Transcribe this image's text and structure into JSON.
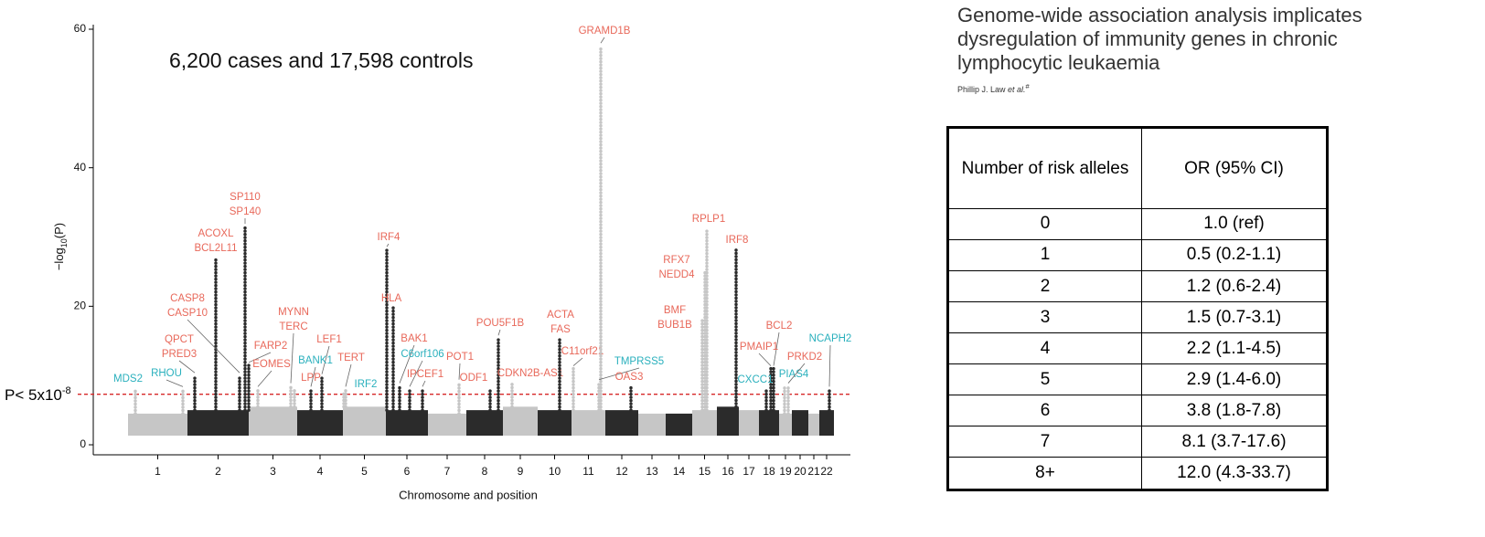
{
  "chart_data": {
    "type": "manhattan",
    "annotation": "6,200 cases and 17,598 controls",
    "xlabel": "Chromosome and position",
    "ylabel": {
      "prefix": "−log",
      "sub": "10",
      "suffix": "(P)"
    },
    "ylim": [
      -1.5,
      60
    ],
    "yticks": [
      0,
      20,
      40,
      60
    ],
    "categories": [
      "1",
      "2",
      "3",
      "4",
      "5",
      "6",
      "7",
      "8",
      "9",
      "10",
      "11",
      "12",
      "13",
      "14",
      "15",
      "16",
      "17",
      "18",
      "19",
      "20",
      "21",
      "22"
    ],
    "background": [
      4.5,
      5,
      5.5,
      5,
      5.5,
      5,
      4.5,
      5,
      5.5,
      5,
      5,
      5,
      4.5,
      4.5,
      5,
      5.5,
      5,
      5,
      4.5,
      5,
      4.5,
      5
    ],
    "colors": {
      "odd": "#c6c6c6",
      "even": "#2b2b2b"
    },
    "threshold": {
      "value": 7.3,
      "label": "P< 5x10",
      "sup": "-8",
      "color": "#d62728"
    },
    "peaks": [
      {
        "label": [
          "MDS2"
        ],
        "chromosome": "1",
        "value": 8,
        "color": "#2ab0bd"
      },
      {
        "label": [
          "RHOU"
        ],
        "chromosome": "1",
        "value": 8,
        "color": "#2ab0bd"
      },
      {
        "label": [
          "QPCT",
          "PRED3"
        ],
        "chromosome": "2",
        "value": 10,
        "color": "#e8685a"
      },
      {
        "label": [
          "ACOXL",
          "BCL2L11"
        ],
        "chromosome": "2",
        "value": 26.8,
        "color": "#e8685a"
      },
      {
        "label": [
          "CASP8",
          "CASP10"
        ],
        "chromosome": "2",
        "value": 10,
        "color": "#e8685a"
      },
      {
        "label": [
          "SP110",
          "SP140"
        ],
        "chromosome": "2",
        "value": 31.5,
        "color": "#e8685a"
      },
      {
        "label": [
          "FARP2"
        ],
        "chromosome": "2",
        "value": 11.5,
        "color": "#e8685a"
      },
      {
        "label": [
          "EOMES"
        ],
        "chromosome": "3",
        "value": 8,
        "color": "#e8685a"
      },
      {
        "label": [
          "MYNN",
          "TERC"
        ],
        "chromosome": "3",
        "value": 8.5,
        "color": "#e8685a"
      },
      {
        "label": [
          "LPP"
        ],
        "chromosome": "3",
        "value": 8,
        "color": "#e8685a"
      },
      {
        "label": [
          "LEF1"
        ],
        "chromosome": "4",
        "value": 9.8,
        "color": "#e8685a"
      },
      {
        "label": [
          "BANK1"
        ],
        "chromosome": "4",
        "value": 8,
        "color": "#2ab0bd"
      },
      {
        "label": [
          "TERT"
        ],
        "chromosome": "5",
        "value": 8,
        "color": "#e8685a"
      },
      {
        "label": [
          "IRF2"
        ],
        "chromosome": "5",
        "value": 7.5,
        "color": "#2ab0bd"
      },
      {
        "label": [
          "IRF4"
        ],
        "chromosome": "6",
        "value": 28.2,
        "color": "#e8685a"
      },
      {
        "label": [
          "HLA"
        ],
        "chromosome": "6",
        "value": 19.8,
        "color": "#e8685a"
      },
      {
        "label": [
          "BAK1"
        ],
        "chromosome": "6",
        "value": 8.5,
        "color": "#e8685a"
      },
      {
        "label": [
          "C6orf106"
        ],
        "chromosome": "6",
        "value": 8,
        "color": "#2ab0bd"
      },
      {
        "label": [
          "IPCEF1"
        ],
        "chromosome": "6",
        "value": 8,
        "color": "#e8685a"
      },
      {
        "label": [
          "POT1"
        ],
        "chromosome": "7",
        "value": 9,
        "color": "#e8685a"
      },
      {
        "label": [
          "ODF1"
        ],
        "chromosome": "8",
        "value": 8,
        "color": "#e8685a"
      },
      {
        "label": [
          "POU5F1B"
        ],
        "chromosome": "8",
        "value": 15.4,
        "color": "#e8685a"
      },
      {
        "label": [
          "CDKN2B-AS1"
        ],
        "chromosome": "9",
        "value": 9,
        "color": "#e8685a"
      },
      {
        "label": [
          "ACTA",
          "FAS"
        ],
        "chromosome": "10",
        "value": 15.2,
        "color": "#e8685a"
      },
      {
        "label": [
          "C11orf21"
        ],
        "chromosome": "11",
        "value": 11,
        "color": "#e8685a"
      },
      {
        "label": [
          "GRAMD1B"
        ],
        "chromosome": "11",
        "value": 57.6,
        "color": "#e8685a"
      },
      {
        "label": [
          "TMPRSS5"
        ],
        "chromosome": "11",
        "value": 9,
        "color": "#2ab0bd"
      },
      {
        "label": [
          "OAS3"
        ],
        "chromosome": "12",
        "value": 8.5,
        "color": "#e8685a"
      },
      {
        "label": [
          "RFX7",
          "NEDD4"
        ],
        "chromosome": "15",
        "value": 25.2,
        "color": "#e8685a"
      },
      {
        "label": [
          "RPLP1"
        ],
        "chromosome": "15",
        "value": 30.9,
        "color": "#e8685a"
      },
      {
        "label": [
          "BMF",
          "BUB1B"
        ],
        "chromosome": "15",
        "value": 18.1,
        "color": "#e8685a"
      },
      {
        "label": [
          "IRF8"
        ],
        "chromosome": "16",
        "value": 28.2,
        "color": "#e8685a"
      },
      {
        "label": [
          "BCL2"
        ],
        "chromosome": "18",
        "value": 11,
        "color": "#e8685a"
      },
      {
        "label": [
          "PMAIP1"
        ],
        "chromosome": "18",
        "value": 11,
        "color": "#e8685a"
      },
      {
        "label": [
          "CXCC1"
        ],
        "chromosome": "18",
        "value": 8,
        "color": "#2ab0bd"
      },
      {
        "label": [
          "PIAS4"
        ],
        "chromosome": "19",
        "value": 8.5,
        "color": "#2ab0bd"
      },
      {
        "label": [
          "PRKD2"
        ],
        "chromosome": "19",
        "value": 8.5,
        "color": "#e8685a"
      },
      {
        "label": [
          "NCAPH2"
        ],
        "chromosome": "22",
        "value": 8,
        "color": "#2ab0bd"
      }
    ]
  },
  "paper": {
    "title_lines": [
      "Genome-wide association analysis implicates",
      "dysregulation of immunity genes in chronic",
      "lymphocytic leukaemia"
    ],
    "author": {
      "name": "Phillip J. Law ",
      "etal": "et al.",
      "sup": "#"
    }
  },
  "table": {
    "header": [
      "Number of risk alleles",
      "OR (95% CI)"
    ],
    "rows": [
      [
        "0",
        "1.0 (ref)"
      ],
      [
        "1",
        "0.5 (0.2-1.1)"
      ],
      [
        "2",
        "1.2 (0.6-2.4)"
      ],
      [
        "3",
        "1.5 (0.7-3.1)"
      ],
      [
        "4",
        "2.2 (1.1-4.5)"
      ],
      [
        "5",
        "2.9 (1.4-6.0)"
      ],
      [
        "6",
        "3.8 (1.8-7.8)"
      ],
      [
        "7",
        "8.1 (3.7-17.6)"
      ],
      [
        "8+",
        "12.0 (4.3-33.7)"
      ]
    ]
  }
}
